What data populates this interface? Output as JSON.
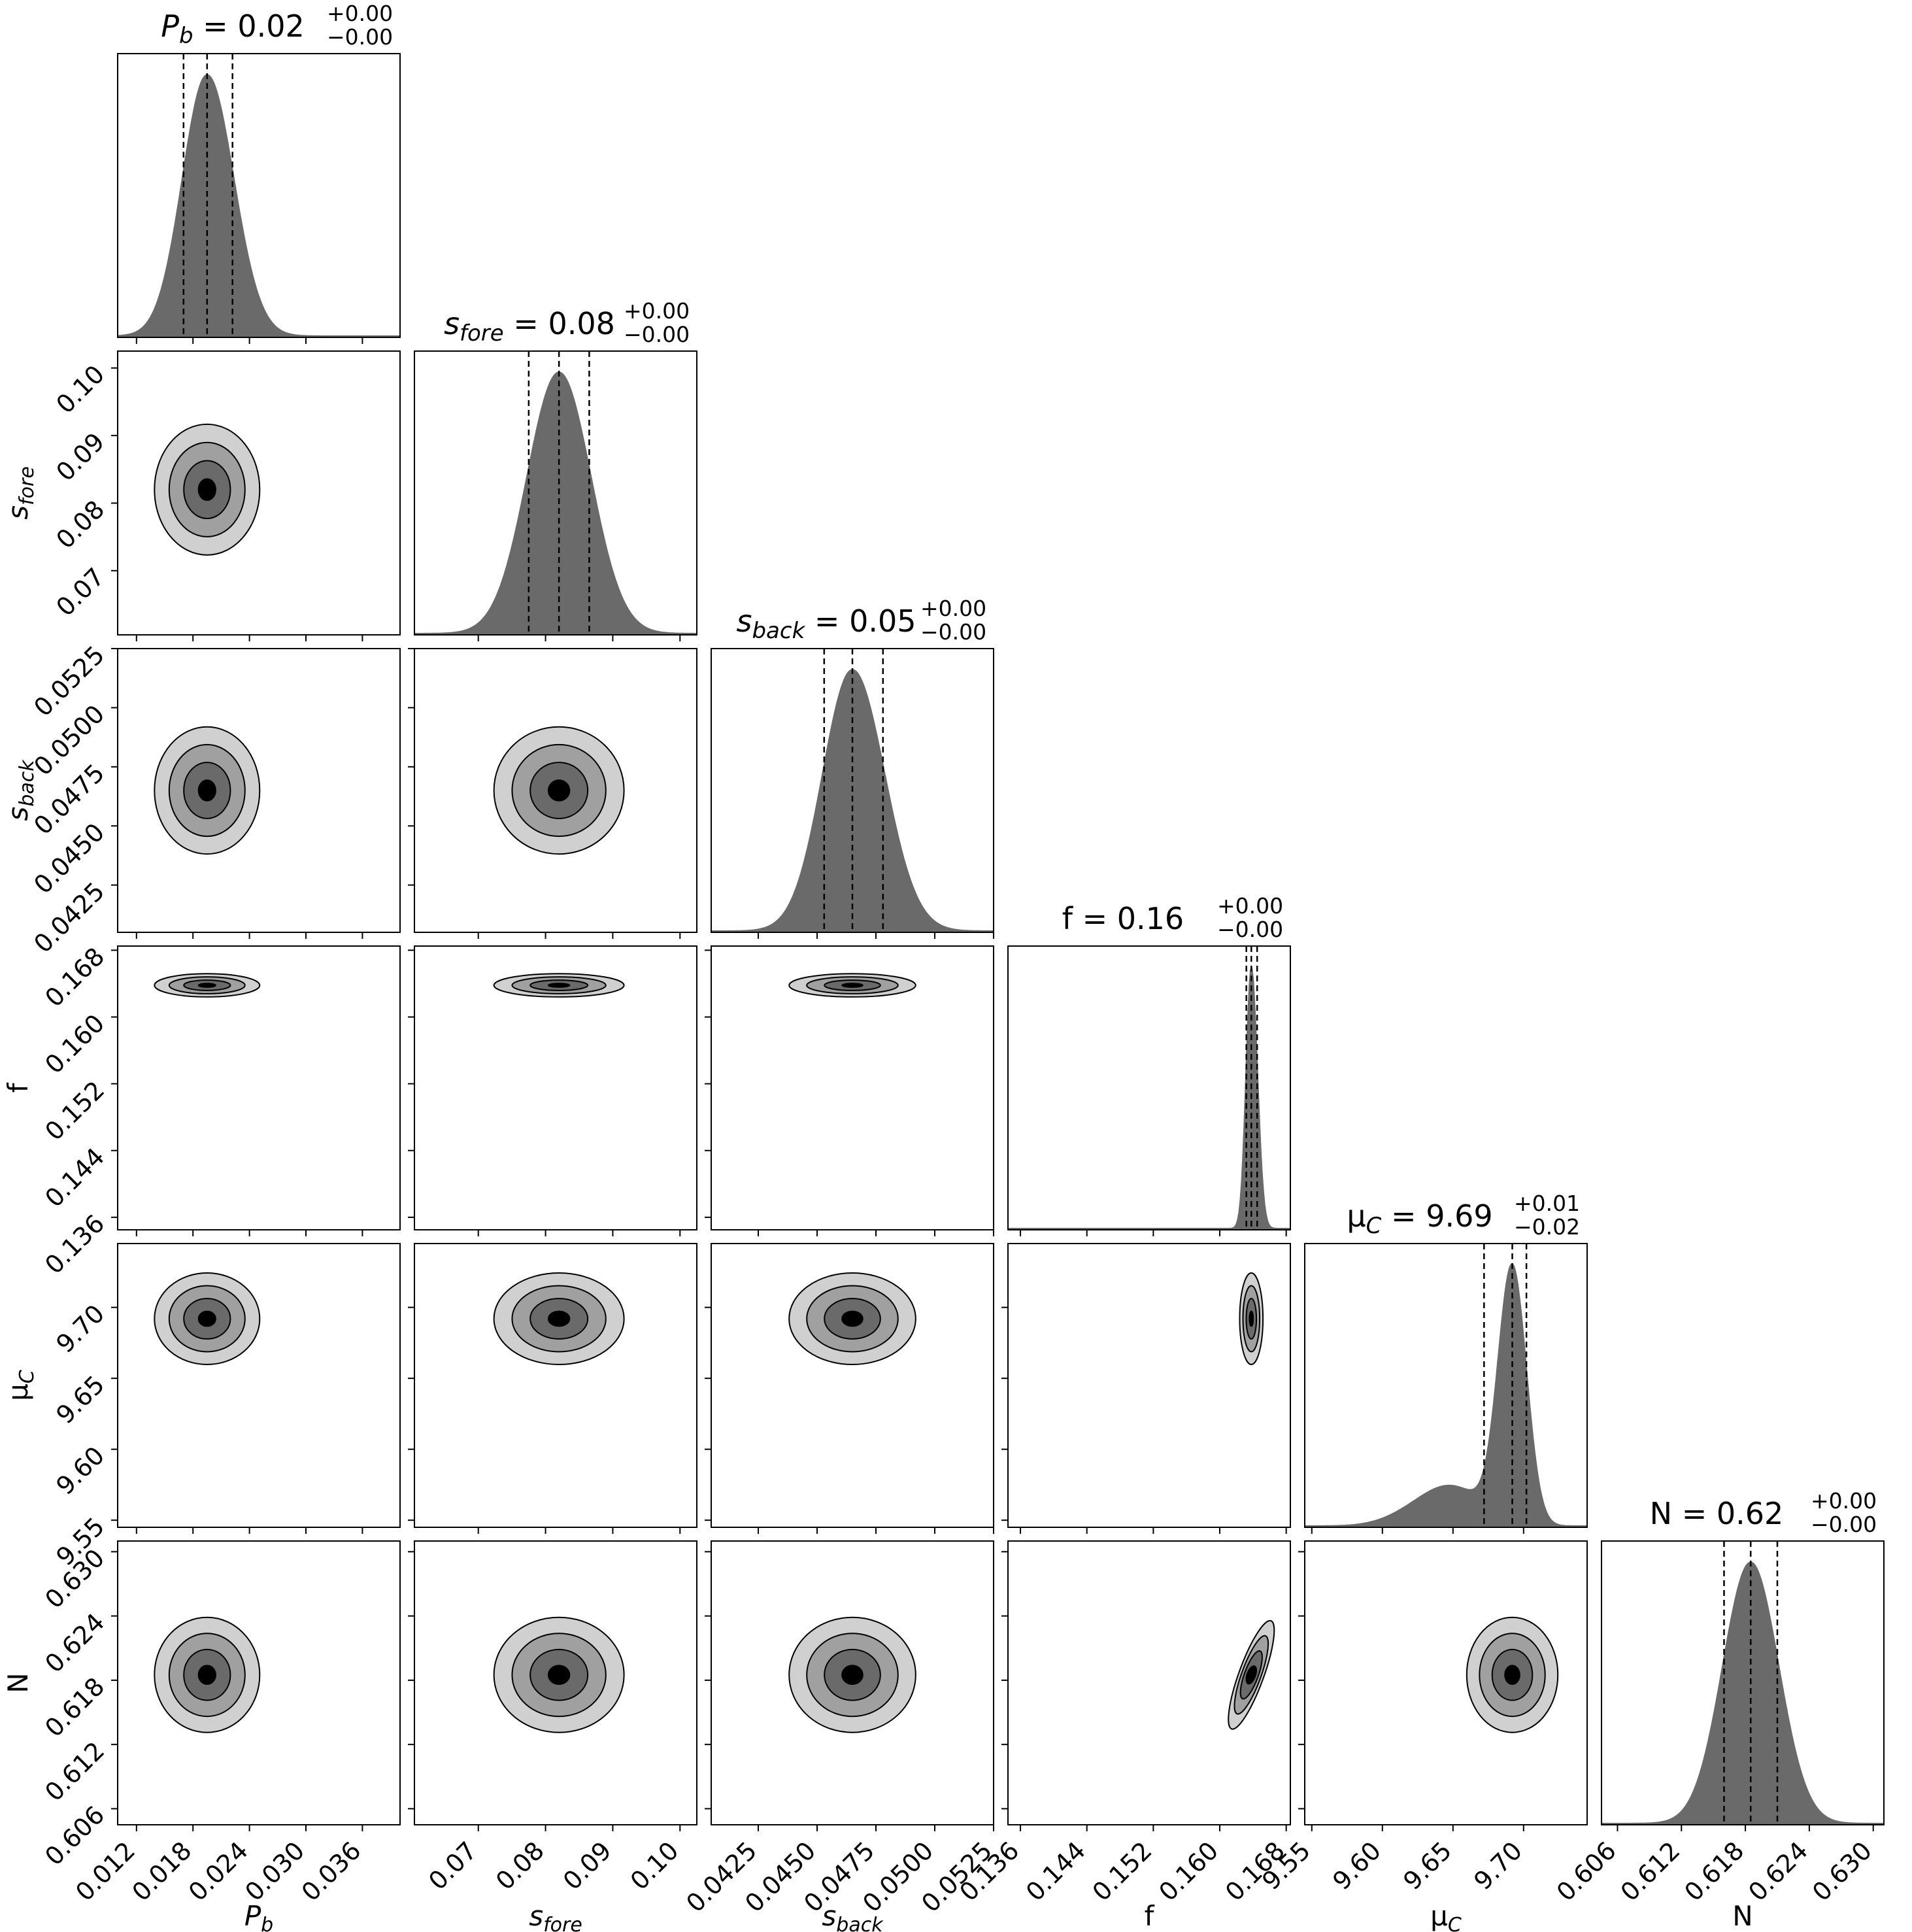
{
  "chart_data": {
    "type": "corner",
    "parameters": [
      {
        "key": "Pb",
        "label": "P_b",
        "title_value": "0.02",
        "err_plus": "+0.00",
        "err_minus": "−0.00",
        "range": [
          0.01,
          0.04
        ],
        "ticks": [
          "0.012",
          "0.018",
          "0.024",
          "0.030",
          "0.036"
        ],
        "median": 0.0195,
        "q16": 0.017,
        "q84": 0.0222
      },
      {
        "key": "sfore",
        "label": "s_fore",
        "title_value": "0.08",
        "err_plus": "+0.00",
        "err_minus": "−0.00",
        "range": [
          0.0605,
          0.1025
        ],
        "ticks": [
          "0.07",
          "0.08",
          "0.09",
          "0.10"
        ],
        "median": 0.082,
        "q16": 0.0775,
        "q84": 0.0865
      },
      {
        "key": "sback",
        "label": "s_back",
        "title_value": "0.05",
        "err_plus": "+0.00",
        "err_minus": "−0.00",
        "range": [
          0.0405,
          0.0525
        ],
        "ticks": [
          "0.0425",
          "0.0450",
          "0.0475",
          "0.0500",
          "0.0525"
        ],
        "median": 0.0465,
        "q16": 0.0453,
        "q84": 0.0478
      },
      {
        "key": "f",
        "label": "f",
        "title_value": "0.16",
        "err_plus": "+0.00",
        "err_minus": "−0.00",
        "range": [
          0.1345,
          0.1685
        ],
        "ticks": [
          "0.136",
          "0.144",
          "0.152",
          "0.160",
          "0.168"
        ],
        "median": 0.1638,
        "q16": 0.1632,
        "q84": 0.1645
      },
      {
        "key": "muC",
        "label": "μ_C",
        "title_value": "9.69",
        "err_plus": "+0.01",
        "err_minus": "−0.02",
        "range": [
          9.545,
          9.745
        ],
        "ticks": [
          "9.55",
          "9.60",
          "9.65",
          "9.70"
        ],
        "median": 9.692,
        "q16": 9.672,
        "q84": 9.702
      },
      {
        "key": "N",
        "label": "N",
        "title_value": "0.62",
        "err_plus": "+0.00",
        "err_minus": "−0.00",
        "range": [
          0.6045,
          0.631
        ],
        "ticks": [
          "0.606",
          "0.612",
          "0.618",
          "0.624",
          "0.630"
        ],
        "median": 0.6185,
        "q16": 0.616,
        "q84": 0.621
      }
    ],
    "contour_levels": 4,
    "contour_fills": [
      "#d0d0d0",
      "#a0a0a0",
      "#6a6a6a",
      "#000000"
    ],
    "histogram_fill": "#6a6a6a",
    "quantile_line_style": "dashed",
    "grid": false
  }
}
